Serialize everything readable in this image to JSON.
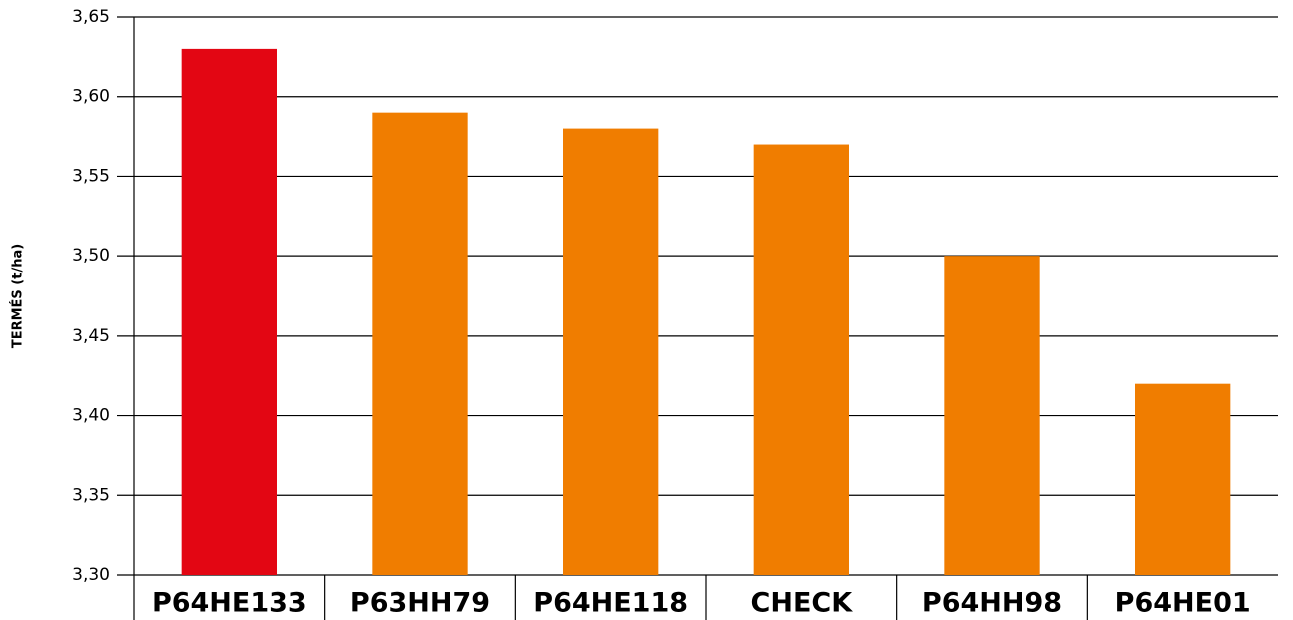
{
  "chart_data": {
    "type": "bar",
    "y_label": "TERMÉS (t/ha)",
    "categories": [
      "P64HE133",
      "P63HH79",
      "P64HE118",
      "CHECK",
      "P64HH98",
      "P64HE01"
    ],
    "values": [
      3.63,
      3.59,
      3.58,
      3.57,
      3.5,
      3.42
    ],
    "colors": [
      "#e30613",
      "#f07d00",
      "#f07d00",
      "#f07d00",
      "#f07d00",
      "#f07d00"
    ],
    "ylim": [
      3.3,
      3.65
    ],
    "yticks": [
      {
        "value": 3.3,
        "label": "3,30"
      },
      {
        "value": 3.35,
        "label": "3,35"
      },
      {
        "value": 3.4,
        "label": "3,40"
      },
      {
        "value": 3.45,
        "label": "3,45"
      },
      {
        "value": 3.5,
        "label": "3,50"
      },
      {
        "value": 3.55,
        "label": "3,55"
      },
      {
        "value": 3.6,
        "label": "3,60"
      },
      {
        "value": 3.65,
        "label": "3,65"
      }
    ],
    "grid": true
  }
}
